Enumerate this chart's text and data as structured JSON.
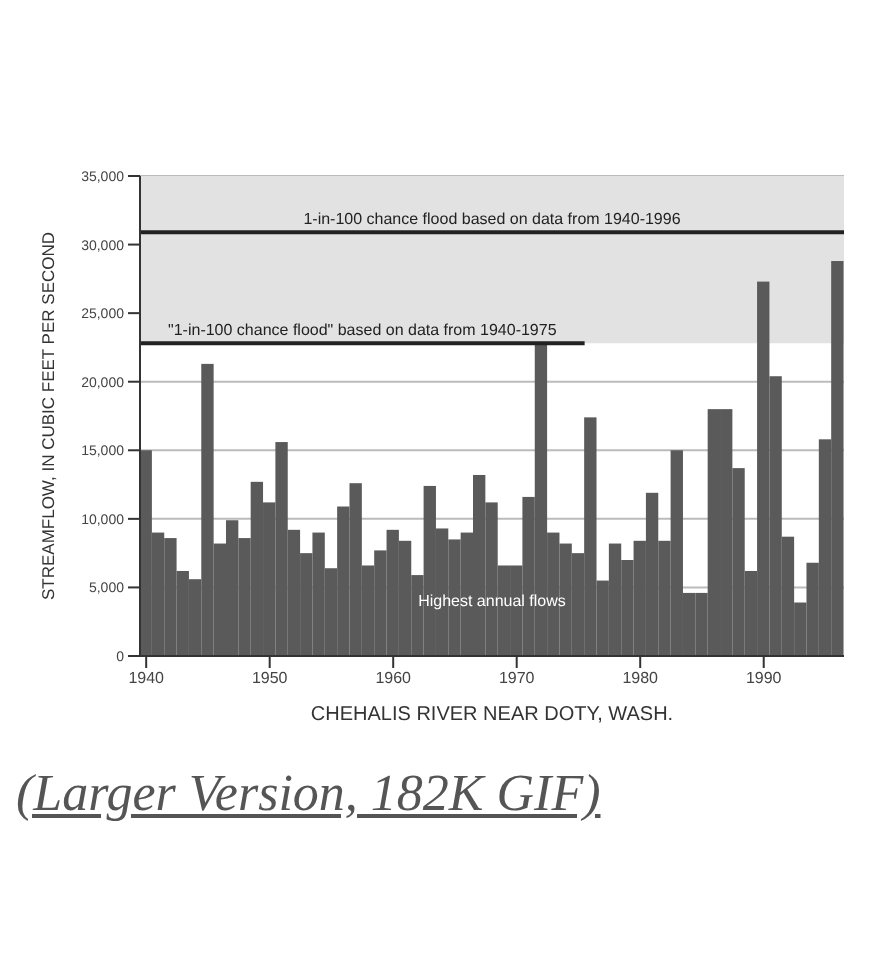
{
  "chart_data": {
    "type": "bar",
    "xlabel": "CHEHALIS RIVER NEAR DOTY, WASH.",
    "ylabel": "STREAMFLOW, IN CUBIC FEET PER SECOND",
    "x": [
      1940,
      1941,
      1942,
      1943,
      1944,
      1945,
      1946,
      1947,
      1948,
      1949,
      1950,
      1951,
      1952,
      1953,
      1954,
      1955,
      1956,
      1957,
      1958,
      1959,
      1960,
      1961,
      1962,
      1963,
      1964,
      1965,
      1966,
      1967,
      1968,
      1969,
      1970,
      1971,
      1972,
      1973,
      1974,
      1975,
      1976,
      1977,
      1978,
      1979,
      1980,
      1981,
      1982,
      1983,
      1984,
      1985,
      1986,
      1987,
      1988,
      1989,
      1990,
      1991,
      1992,
      1993,
      1994,
      1995,
      1996
    ],
    "series": [
      {
        "color": "#5a5a5a",
        "values": [
          15000,
          9000,
          8600,
          6200,
          5600,
          21300,
          8200,
          9900,
          8600,
          12700,
          11200,
          15600,
          9200,
          7500,
          9000,
          6400,
          10900,
          12600,
          6600,
          7700,
          9200,
          8400,
          5900,
          12400,
          9300,
          8500,
          9000,
          13200,
          11200,
          6600,
          6600,
          11600,
          22800,
          9000,
          8200,
          7500,
          17400,
          5500,
          8200,
          7000,
          8400,
          11900,
          8400,
          15000,
          4600,
          4600,
          18000,
          18000,
          13700,
          6200,
          27300,
          20400,
          8700,
          3900,
          6800,
          15800,
          28800
        ]
      },
      {
        "type": "line",
        "color": "#222222",
        "x": [
          1939.5,
          1975.5
        ],
        "values": [
          22800,
          22800
        ]
      }
    ],
    "xlim": [
      1939.5,
      1996.5
    ],
    "xticks": [
      1940,
      1950,
      1960,
      1970,
      1980,
      1990
    ],
    "ylim": [
      0,
      35000
    ],
    "yticks": [
      0,
      {
        "value": 5000,
        "label": "5,000"
      },
      {
        "value": 10000,
        "label": "10,000"
      },
      {
        "value": 15000,
        "label": "15,000"
      },
      {
        "value": 20000,
        "label": "20,000"
      },
      {
        "value": 25000,
        "label": "25,000"
      },
      {
        "value": 30000,
        "label": "30,000"
      },
      {
        "value": 35000,
        "label": "35,000"
      }
    ],
    "grid": "y",
    "ref_lines": [
      {
        "axis": "y",
        "value": 30900,
        "color": "#222222",
        "label": "1-in-100 chance flood based on data from 1940-1996"
      }
    ],
    "bands": [
      {
        "axis": "y",
        "from": 22800,
        "to": 35000,
        "color": "#e2e2e2"
      }
    ],
    "annotations": [
      "\"1-in-100 chance flood\" based on data from 1940-1975",
      "Highest annual flows",
      "(Larger Version, 182K GIF)"
    ]
  }
}
